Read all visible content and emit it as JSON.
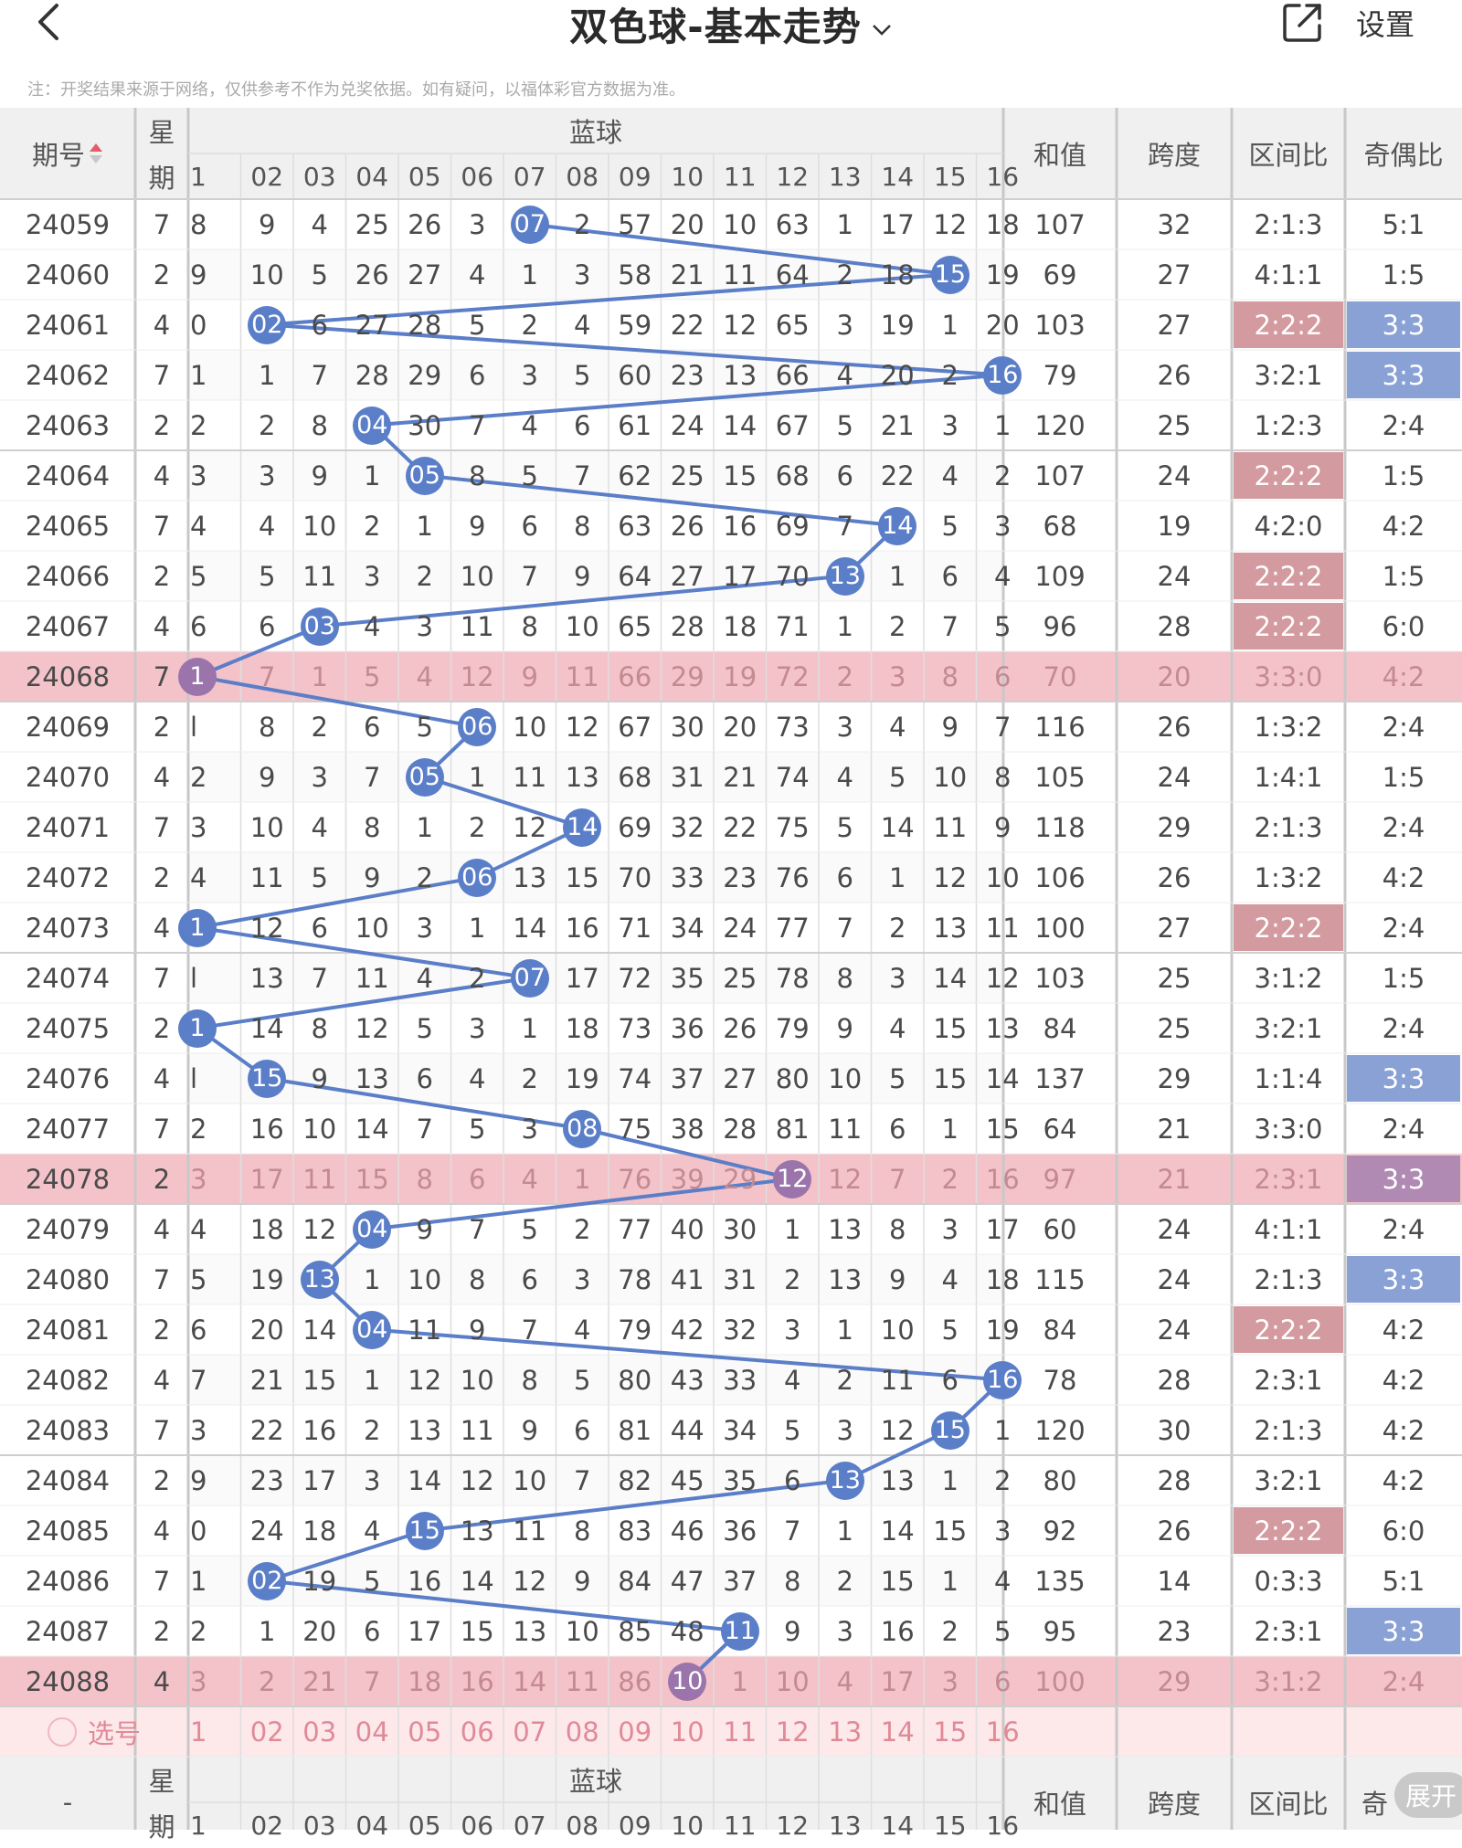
{
  "header": {
    "title": "双色球-基本走势",
    "settings_label": "设置"
  },
  "notice": "注：开奖结果来源于网络，仅供参考不作为兑奖依据。如有疑问，以福体彩官方数据为准。",
  "table": {
    "col_period": "期号",
    "col_week_top": "星",
    "col_week_bottom": "期",
    "col_blue": "蓝球",
    "col_sum": "和值",
    "col_span": "跨度",
    "col_zone": "区间比",
    "col_oddeven": "奇偶比",
    "blue_labels": [
      "1",
      "02",
      "03",
      "04",
      "05",
      "06",
      "07",
      "08",
      "09",
      "10",
      "11",
      "12",
      "13",
      "14",
      "15",
      "16"
    ],
    "select_label": "选号",
    "footer_period": "-",
    "footer_oddeven": "奇",
    "expand_label": "展开",
    "colors": {
      "ball": "#5b7ec8",
      "highlight_row": "#f3c3c9",
      "zone_highlight": "#d39a9f",
      "oddeven_highlight": "#8aa1d6"
    },
    "rows": [
      {
        "period": "24059",
        "week": "7",
        "blue": "07",
        "cells": [
          "8",
          "9",
          "4",
          "25",
          "26",
          "3",
          "07",
          "2",
          "57",
          "20",
          "10",
          "63",
          "1",
          "17",
          "12",
          "18"
        ],
        "sum": "107",
        "span": "32",
        "zone": "2:1:3",
        "oddeven": "5:1",
        "zone_hl": false,
        "oe_hl": false,
        "row_hl": false
      },
      {
        "period": "24060",
        "week": "2",
        "blue": "15",
        "cells": [
          "9",
          "10",
          "5",
          "26",
          "27",
          "4",
          "1",
          "3",
          "58",
          "21",
          "11",
          "64",
          "2",
          "18",
          "15",
          "19"
        ],
        "sum": "69",
        "span": "27",
        "zone": "4:1:1",
        "oddeven": "1:5",
        "zone_hl": false,
        "oe_hl": false,
        "row_hl": false
      },
      {
        "period": "24061",
        "week": "4",
        "blue": "02",
        "cells": [
          "0",
          "02",
          "6",
          "27",
          "28",
          "5",
          "2",
          "4",
          "59",
          "22",
          "12",
          "65",
          "3",
          "19",
          "1",
          "20"
        ],
        "sum": "103",
        "span": "27",
        "zone": "2:2:2",
        "oddeven": "3:3",
        "zone_hl": true,
        "oe_hl": true,
        "row_hl": false
      },
      {
        "period": "24062",
        "week": "7",
        "blue": "16",
        "cells": [
          "1",
          "1",
          "7",
          "28",
          "29",
          "6",
          "3",
          "5",
          "60",
          "23",
          "13",
          "66",
          "4",
          "20",
          "2",
          "16"
        ],
        "sum": "79",
        "span": "26",
        "zone": "3:2:1",
        "oddeven": "3:3",
        "zone_hl": false,
        "oe_hl": true,
        "row_hl": false
      },
      {
        "period": "24063",
        "week": "2",
        "blue": "04",
        "cells": [
          "2",
          "2",
          "8",
          "04",
          "30",
          "7",
          "4",
          "6",
          "61",
          "24",
          "14",
          "67",
          "5",
          "21",
          "3",
          "1"
        ],
        "sum": "120",
        "span": "25",
        "zone": "1:2:3",
        "oddeven": "2:4",
        "zone_hl": false,
        "oe_hl": false,
        "row_hl": false
      },
      {
        "period": "24064",
        "week": "4",
        "blue": "05",
        "cells": [
          "3",
          "3",
          "9",
          "1",
          "05",
          "8",
          "5",
          "7",
          "62",
          "25",
          "15",
          "68",
          "6",
          "22",
          "4",
          "2"
        ],
        "sum": "107",
        "span": "24",
        "zone": "2:2:2",
        "oddeven": "1:5",
        "zone_hl": true,
        "oe_hl": false,
        "row_hl": false
      },
      {
        "period": "24065",
        "week": "7",
        "blue": "14",
        "cells": [
          "4",
          "4",
          "10",
          "2",
          "1",
          "9",
          "6",
          "8",
          "63",
          "26",
          "16",
          "69",
          "7",
          "14",
          "5",
          "3"
        ],
        "sum": "68",
        "span": "19",
        "zone": "4:2:0",
        "oddeven": "4:2",
        "zone_hl": false,
        "oe_hl": false,
        "row_hl": false
      },
      {
        "period": "24066",
        "week": "2",
        "blue": "13",
        "cells": [
          "5",
          "5",
          "11",
          "3",
          "2",
          "10",
          "7",
          "9",
          "64",
          "27",
          "17",
          "70",
          "13",
          "1",
          "6",
          "4"
        ],
        "sum": "109",
        "span": "24",
        "zone": "2:2:2",
        "oddeven": "1:5",
        "zone_hl": true,
        "oe_hl": false,
        "row_hl": false
      },
      {
        "period": "24067",
        "week": "4",
        "blue": "03",
        "cells": [
          "6",
          "6",
          "03",
          "4",
          "3",
          "11",
          "8",
          "10",
          "65",
          "28",
          "18",
          "71",
          "1",
          "2",
          "7",
          "5"
        ],
        "sum": "96",
        "span": "28",
        "zone": "2:2:2",
        "oddeven": "6:0",
        "zone_hl": true,
        "oe_hl": false,
        "row_hl": false
      },
      {
        "period": "24068",
        "week": "7",
        "blue": "1",
        "cells": [
          "1",
          "7",
          "1",
          "5",
          "4",
          "12",
          "9",
          "11",
          "66",
          "29",
          "19",
          "72",
          "2",
          "3",
          "8",
          "6"
        ],
        "sum": "70",
        "span": "20",
        "zone": "3:3:0",
        "oddeven": "4:2",
        "zone_hl": false,
        "oe_hl": false,
        "row_hl": true
      },
      {
        "period": "24069",
        "week": "2",
        "blue": "06",
        "cells": [
          "l",
          "8",
          "2",
          "6",
          "5",
          "06",
          "10",
          "12",
          "67",
          "30",
          "20",
          "73",
          "3",
          "4",
          "9",
          "7"
        ],
        "sum": "116",
        "span": "26",
        "zone": "1:3:2",
        "oddeven": "2:4",
        "zone_hl": false,
        "oe_hl": false,
        "row_hl": false
      },
      {
        "period": "24070",
        "week": "4",
        "blue": "05",
        "cells": [
          "2",
          "9",
          "3",
          "7",
          "05",
          "1",
          "11",
          "13",
          "68",
          "31",
          "21",
          "74",
          "4",
          "5",
          "10",
          "8"
        ],
        "sum": "105",
        "span": "24",
        "zone": "1:4:1",
        "oddeven": "1:5",
        "zone_hl": false,
        "oe_hl": false,
        "row_hl": false
      },
      {
        "period": "24071",
        "week": "7",
        "blue": "14",
        "cells": [
          "3",
          "10",
          "4",
          "8",
          "1",
          "2",
          "12",
          "14",
          "69",
          "32",
          "22",
          "75",
          "5",
          "14",
          "11",
          "9"
        ],
        "sum": "118",
        "span": "29",
        "zone": "2:1:3",
        "oddeven": "2:4",
        "zone_hl": false,
        "oe_hl": false,
        "row_hl": false
      },
      {
        "period": "24072",
        "week": "2",
        "blue": "06",
        "cells": [
          "4",
          "11",
          "5",
          "9",
          "2",
          "06",
          "13",
          "15",
          "70",
          "33",
          "23",
          "76",
          "6",
          "1",
          "12",
          "10"
        ],
        "sum": "106",
        "span": "26",
        "zone": "1:3:2",
        "oddeven": "4:2",
        "zone_hl": false,
        "oe_hl": false,
        "row_hl": false
      },
      {
        "period": "24073",
        "week": "4",
        "blue": "1",
        "cells": [
          "1",
          "12",
          "6",
          "10",
          "3",
          "1",
          "14",
          "16",
          "71",
          "34",
          "24",
          "77",
          "7",
          "2",
          "13",
          "11"
        ],
        "sum": "100",
        "span": "27",
        "zone": "2:2:2",
        "oddeven": "2:4",
        "zone_hl": true,
        "oe_hl": false,
        "row_hl": false
      },
      {
        "period": "24074",
        "week": "7",
        "blue": "07",
        "cells": [
          "l",
          "13",
          "7",
          "11",
          "4",
          "2",
          "07",
          "17",
          "72",
          "35",
          "25",
          "78",
          "8",
          "3",
          "14",
          "12"
        ],
        "sum": "103",
        "span": "25",
        "zone": "3:1:2",
        "oddeven": "1:5",
        "zone_hl": false,
        "oe_hl": false,
        "row_hl": false
      },
      {
        "period": "24075",
        "week": "2",
        "blue": "1",
        "cells": [
          "1",
          "14",
          "8",
          "12",
          "5",
          "3",
          "1",
          "18",
          "73",
          "36",
          "26",
          "79",
          "9",
          "4",
          "15",
          "13"
        ],
        "sum": "84",
        "span": "25",
        "zone": "3:2:1",
        "oddeven": "2:4",
        "zone_hl": false,
        "oe_hl": false,
        "row_hl": false
      },
      {
        "period": "24076",
        "week": "4",
        "blue": "15",
        "cells": [
          "l",
          "15",
          "9",
          "13",
          "6",
          "4",
          "2",
          "19",
          "74",
          "37",
          "27",
          "80",
          "10",
          "5",
          "15",
          "14"
        ],
        "sum": "137",
        "span": "29",
        "zone": "1:1:4",
        "oddeven": "3:3",
        "zone_hl": false,
        "oe_hl": true,
        "row_hl": false
      },
      {
        "period": "24077",
        "week": "7",
        "blue": "08",
        "cells": [
          "2",
          "16",
          "10",
          "14",
          "7",
          "5",
          "3",
          "08",
          "75",
          "38",
          "28",
          "81",
          "11",
          "6",
          "1",
          "15"
        ],
        "sum": "64",
        "span": "21",
        "zone": "3:3:0",
        "oddeven": "2:4",
        "zone_hl": false,
        "oe_hl": false,
        "row_hl": false
      },
      {
        "period": "24078",
        "week": "2",
        "blue": "12",
        "cells": [
          "3",
          "17",
          "11",
          "15",
          "8",
          "6",
          "4",
          "1",
          "76",
          "39",
          "29",
          "12",
          "12",
          "7",
          "2",
          "16"
        ],
        "sum": "97",
        "span": "21",
        "zone": "2:3:1",
        "oddeven": "3:3",
        "zone_hl": false,
        "oe_hl": true,
        "row_hl": true
      },
      {
        "period": "24079",
        "week": "4",
        "blue": "04",
        "cells": [
          "4",
          "18",
          "12",
          "04",
          "9",
          "7",
          "5",
          "2",
          "77",
          "40",
          "30",
          "1",
          "13",
          "8",
          "3",
          "17"
        ],
        "sum": "60",
        "span": "24",
        "zone": "4:1:1",
        "oddeven": "2:4",
        "zone_hl": false,
        "oe_hl": false,
        "row_hl": false
      },
      {
        "period": "24080",
        "week": "7",
        "blue": "13",
        "cells": [
          "5",
          "19",
          "13",
          "1",
          "10",
          "8",
          "6",
          "3",
          "78",
          "41",
          "31",
          "2",
          "13",
          "9",
          "4",
          "18"
        ],
        "sum": "115",
        "span": "24",
        "zone": "2:1:3",
        "oddeven": "3:3",
        "zone_hl": false,
        "oe_hl": true,
        "row_hl": false
      },
      {
        "period": "24081",
        "week": "2",
        "blue": "04",
        "cells": [
          "6",
          "20",
          "14",
          "04",
          "11",
          "9",
          "7",
          "4",
          "79",
          "42",
          "32",
          "3",
          "1",
          "10",
          "5",
          "19"
        ],
        "sum": "84",
        "span": "24",
        "zone": "2:2:2",
        "oddeven": "4:2",
        "zone_hl": true,
        "oe_hl": false,
        "row_hl": false
      },
      {
        "period": "24082",
        "week": "4",
        "blue": "16",
        "cells": [
          "7",
          "21",
          "15",
          "1",
          "12",
          "10",
          "8",
          "5",
          "80",
          "43",
          "33",
          "4",
          "2",
          "11",
          "6",
          "16"
        ],
        "sum": "78",
        "span": "28",
        "zone": "2:3:1",
        "oddeven": "4:2",
        "zone_hl": false,
        "oe_hl": false,
        "row_hl": false
      },
      {
        "period": "24083",
        "week": "7",
        "blue": "15",
        "cells": [
          "3",
          "22",
          "16",
          "2",
          "13",
          "11",
          "9",
          "6",
          "81",
          "44",
          "34",
          "5",
          "3",
          "12",
          "15",
          "1"
        ],
        "sum": "120",
        "span": "30",
        "zone": "2:1:3",
        "oddeven": "4:2",
        "zone_hl": false,
        "oe_hl": false,
        "row_hl": false
      },
      {
        "period": "24084",
        "week": "2",
        "blue": "13",
        "cells": [
          "9",
          "23",
          "17",
          "3",
          "14",
          "12",
          "10",
          "7",
          "82",
          "45",
          "35",
          "6",
          "13",
          "13",
          "1",
          "2"
        ],
        "sum": "80",
        "span": "28",
        "zone": "3:2:1",
        "oddeven": "4:2",
        "zone_hl": false,
        "oe_hl": false,
        "row_hl": false
      },
      {
        "period": "24085",
        "week": "4",
        "blue": "15",
        "cells": [
          "0",
          "24",
          "18",
          "4",
          "15",
          "13",
          "11",
          "8",
          "83",
          "46",
          "36",
          "7",
          "1",
          "14",
          "15",
          "3"
        ],
        "sum": "92",
        "span": "26",
        "zone": "2:2:2",
        "oddeven": "6:0",
        "zone_hl": true,
        "oe_hl": false,
        "row_hl": false
      },
      {
        "period": "24086",
        "week": "7",
        "blue": "02",
        "cells": [
          "1",
          "02",
          "19",
          "5",
          "16",
          "14",
          "12",
          "9",
          "84",
          "47",
          "37",
          "8",
          "2",
          "15",
          "1",
          "4"
        ],
        "sum": "135",
        "span": "14",
        "zone": "0:3:3",
        "oddeven": "5:1",
        "zone_hl": false,
        "oe_hl": false,
        "row_hl": false
      },
      {
        "period": "24087",
        "week": "2",
        "blue": "11",
        "cells": [
          "2",
          "1",
          "20",
          "6",
          "17",
          "15",
          "13",
          "10",
          "85",
          "48",
          "11",
          "9",
          "3",
          "16",
          "2",
          "5"
        ],
        "sum": "95",
        "span": "23",
        "zone": "2:3:1",
        "oddeven": "3:3",
        "zone_hl": false,
        "oe_hl": true,
        "row_hl": false
      },
      {
        "period": "24088",
        "week": "4",
        "blue": "10",
        "cells": [
          "3",
          "2",
          "21",
          "7",
          "18",
          "16",
          "14",
          "11",
          "86",
          "10",
          "1",
          "10",
          "4",
          "17",
          "3",
          "6"
        ],
        "sum": "100",
        "span": "29",
        "zone": "3:1:2",
        "oddeven": "2:4",
        "zone_hl": false,
        "oe_hl": false,
        "row_hl": true
      }
    ]
  }
}
